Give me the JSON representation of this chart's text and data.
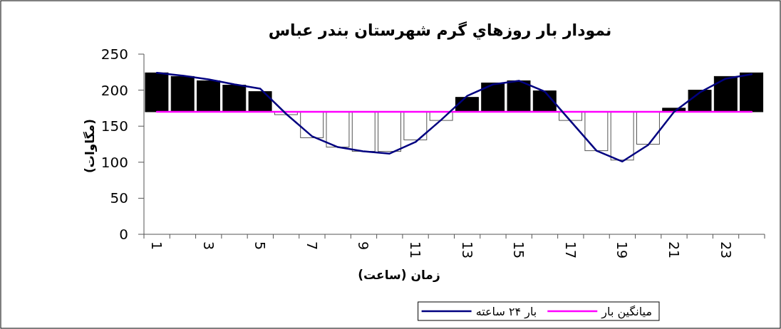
{
  "chart_data": {
    "type": "bar",
    "title": "نمودار بار روزهاي گرم شهرستان بندر عباس",
    "xlabel": "زمان (ساعت)",
    "ylabel": "(مگاوات)",
    "categories": [
      "1",
      null,
      "3",
      null,
      "5",
      null,
      "7",
      null,
      "9",
      null,
      "11",
      null,
      "13",
      null,
      "15",
      null,
      "17",
      null,
      "19",
      null,
      "21",
      null,
      "23",
      null
    ],
    "ylim": [
      0,
      250
    ],
    "yticks": [
      0,
      50,
      100,
      150,
      200,
      250
    ],
    "grid": false,
    "legend": "bottom",
    "series": [
      {
        "base": [
          170,
          170,
          170,
          170,
          170,
          170,
          170,
          170,
          170,
          170,
          170,
          170,
          170,
          170,
          170,
          170,
          170,
          170,
          170,
          170,
          170,
          170,
          170,
          170
        ],
        "values": [
          54,
          49,
          43,
          37,
          28,
          -4,
          -36,
          -49,
          -55,
          -55,
          -39,
          -12,
          20,
          40,
          43,
          29,
          -12,
          -54,
          -67,
          -45,
          5,
          30,
          49,
          54
        ],
        "colors": [
          "#000000",
          "#000000",
          "#000000",
          "#000000",
          "#000000",
          "#ffffff",
          "#ffffff",
          "#ffffff",
          "#ffffff",
          "#ffffff",
          "#ffffff",
          "#ffffff",
          "#000000",
          "#000000",
          "#000000",
          "#000000",
          "#ffffff",
          "#ffffff",
          "#ffffff",
          "#ffffff",
          "#000000",
          "#000000",
          "#000000",
          "#000000"
        ]
      },
      {
        "type": "line",
        "name": "میانگین بار",
        "color": "#ff00ff",
        "values": [
          170,
          170,
          170,
          170,
          170,
          170,
          170,
          170,
          170,
          170,
          170,
          170,
          170,
          170,
          170,
          170,
          170,
          170,
          170,
          170,
          170,
          170,
          170,
          170
        ]
      },
      {
        "type": "line",
        "name": "بار ۲۴ ساعته",
        "color": "#000080",
        "values": [
          224,
          220,
          215,
          208,
          202,
          167,
          136,
          121,
          115,
          112,
          128,
          159,
          192,
          208,
          213,
          198,
          157,
          116,
          101,
          124,
          170,
          197,
          216,
          222
        ]
      }
    ]
  }
}
